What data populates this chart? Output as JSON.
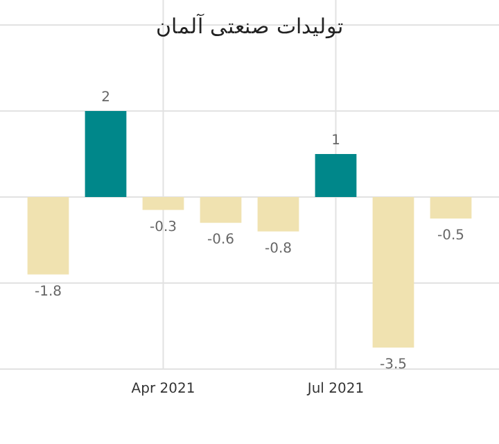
{
  "chart_data": {
    "type": "bar",
    "title": "تولیدات صنعتی آلمان",
    "categories": [
      null,
      null,
      "Apr 2021",
      null,
      null,
      "Jul 2021",
      null,
      null
    ],
    "values": [
      -1.8,
      2,
      -0.3,
      -0.6,
      -0.8,
      1,
      -3.5,
      -0.5
    ],
    "colors": [
      "#f0e2b0",
      "#00878a",
      "#f0e2b0",
      "#f0e2b0",
      "#f0e2b0",
      "#00878a",
      "#f0e2b0",
      "#f0e2b0"
    ],
    "ylim": [
      -4,
      4
    ],
    "yticks": [
      {
        "value": -4,
        "label": null
      },
      {
        "value": -2,
        "label": null
      },
      {
        "value": 0,
        "label": null
      },
      {
        "value": 2,
        "label": null
      },
      {
        "value": 4,
        "label": null
      }
    ],
    "tick_labels": "x",
    "grid": true,
    "data_labels": true
  }
}
